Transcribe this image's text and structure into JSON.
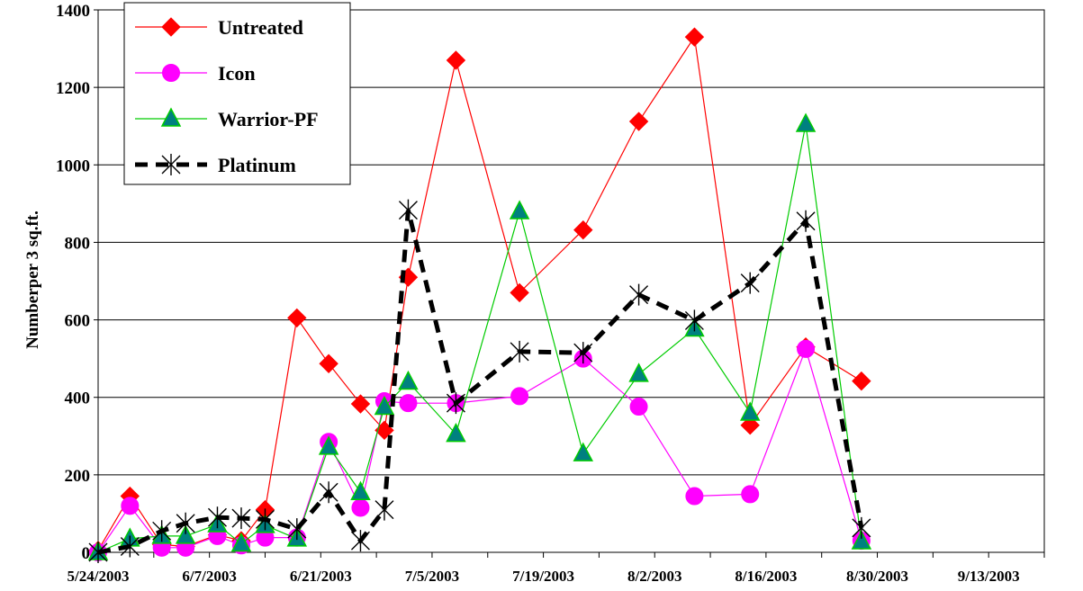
{
  "chart_data": {
    "type": "line",
    "title": "",
    "xlabel": "",
    "ylabel": "Numberper 3 sq.ft.",
    "ylim": [
      0,
      1400
    ],
    "yticks": [
      0,
      200,
      400,
      600,
      800,
      1000,
      1200,
      1400
    ],
    "x_tick_labels": [
      "5/24/2003",
      "6/7/2003",
      "6/21/2003",
      "7/5/2003",
      "7/19/2003",
      "8/2/2003",
      "8/16/2003",
      "8/30/2003",
      "9/13/2003"
    ],
    "grid": "horizontal",
    "legend_position": "top-left",
    "series": [
      {
        "name": "Untreated",
        "color": "#ff0000",
        "line_color": "#ff0000",
        "marker": "diamond",
        "line_style": "solid",
        "points": [
          [
            "5/24/2003",
            5
          ],
          [
            "5/28/2003",
            145
          ],
          [
            "6/1/2003",
            20
          ],
          [
            "6/4/2003",
            15
          ],
          [
            "6/8/2003",
            45
          ],
          [
            "6/11/2003",
            30
          ],
          [
            "6/14/2003",
            110
          ],
          [
            "6/18/2003",
            605
          ],
          [
            "6/22/2003",
            487
          ],
          [
            "6/26/2003",
            383
          ],
          [
            "6/29/2003",
            315
          ],
          [
            "7/2/2003",
            710
          ],
          [
            "7/8/2003",
            1270
          ],
          [
            "7/16/2003",
            670
          ],
          [
            "7/24/2003",
            832
          ],
          [
            "7/31/2003",
            1112
          ],
          [
            "8/7/2003",
            1330
          ],
          [
            "8/14/2003",
            328
          ],
          [
            "8/21/2003",
            530
          ],
          [
            "8/28/2003",
            442
          ]
        ]
      },
      {
        "name": "Icon",
        "color": "#ff00ff",
        "line_color": "#ff00ff",
        "marker": "circle",
        "line_style": "solid",
        "points": [
          [
            "5/24/2003",
            0
          ],
          [
            "5/28/2003",
            120
          ],
          [
            "6/1/2003",
            12
          ],
          [
            "6/4/2003",
            12
          ],
          [
            "6/8/2003",
            42
          ],
          [
            "6/11/2003",
            18
          ],
          [
            "6/14/2003",
            38
          ],
          [
            "6/18/2003",
            38
          ],
          [
            "6/22/2003",
            285
          ],
          [
            "6/26/2003",
            115
          ],
          [
            "6/29/2003",
            390
          ],
          [
            "7/2/2003",
            385
          ],
          [
            "7/8/2003",
            385
          ],
          [
            "7/16/2003",
            403
          ],
          [
            "7/24/2003",
            500
          ],
          [
            "7/31/2003",
            376
          ],
          [
            "8/7/2003",
            145
          ],
          [
            "8/14/2003",
            150
          ],
          [
            "8/21/2003",
            525
          ],
          [
            "8/28/2003",
            30
          ]
        ]
      },
      {
        "name": "Warrior-PF",
        "color": "#008080",
        "line_color": "#00cc00",
        "marker": "triangle",
        "line_style": "solid",
        "points": [
          [
            "5/24/2003",
            0
          ],
          [
            "5/28/2003",
            35
          ],
          [
            "6/1/2003",
            42
          ],
          [
            "6/4/2003",
            42
          ],
          [
            "6/8/2003",
            72
          ],
          [
            "6/11/2003",
            22
          ],
          [
            "6/14/2003",
            70
          ],
          [
            "6/18/2003",
            35
          ],
          [
            "6/22/2003",
            272
          ],
          [
            "6/26/2003",
            155
          ],
          [
            "6/29/2003",
            375
          ],
          [
            "7/2/2003",
            440
          ],
          [
            "7/8/2003",
            305
          ],
          [
            "7/16/2003",
            880
          ],
          [
            "7/24/2003",
            255
          ],
          [
            "7/31/2003",
            460
          ],
          [
            "8/7/2003",
            577
          ],
          [
            "8/14/2003",
            360
          ],
          [
            "8/21/2003",
            1105
          ],
          [
            "8/28/2003",
            28
          ]
        ]
      },
      {
        "name": "Platinum",
        "color": "#000000",
        "line_color": "#000000",
        "marker": "star",
        "line_style": "dashed",
        "points": [
          [
            "5/24/2003",
            0
          ],
          [
            "5/28/2003",
            15
          ],
          [
            "6/1/2003",
            55
          ],
          [
            "6/4/2003",
            75
          ],
          [
            "6/8/2003",
            90
          ],
          [
            "6/11/2003",
            88
          ],
          [
            "6/14/2003",
            85
          ],
          [
            "6/18/2003",
            60
          ],
          [
            "6/22/2003",
            155
          ],
          [
            "6/26/2003",
            30
          ],
          [
            "6/29/2003",
            110
          ],
          [
            "7/2/2003",
            883
          ],
          [
            "7/8/2003",
            385
          ],
          [
            "7/16/2003",
            518
          ],
          [
            "7/24/2003",
            515
          ],
          [
            "7/31/2003",
            665
          ],
          [
            "8/7/2003",
            598
          ],
          [
            "8/14/2003",
            695
          ],
          [
            "8/21/2003",
            855
          ],
          [
            "8/28/2003",
            63
          ]
        ]
      }
    ]
  }
}
